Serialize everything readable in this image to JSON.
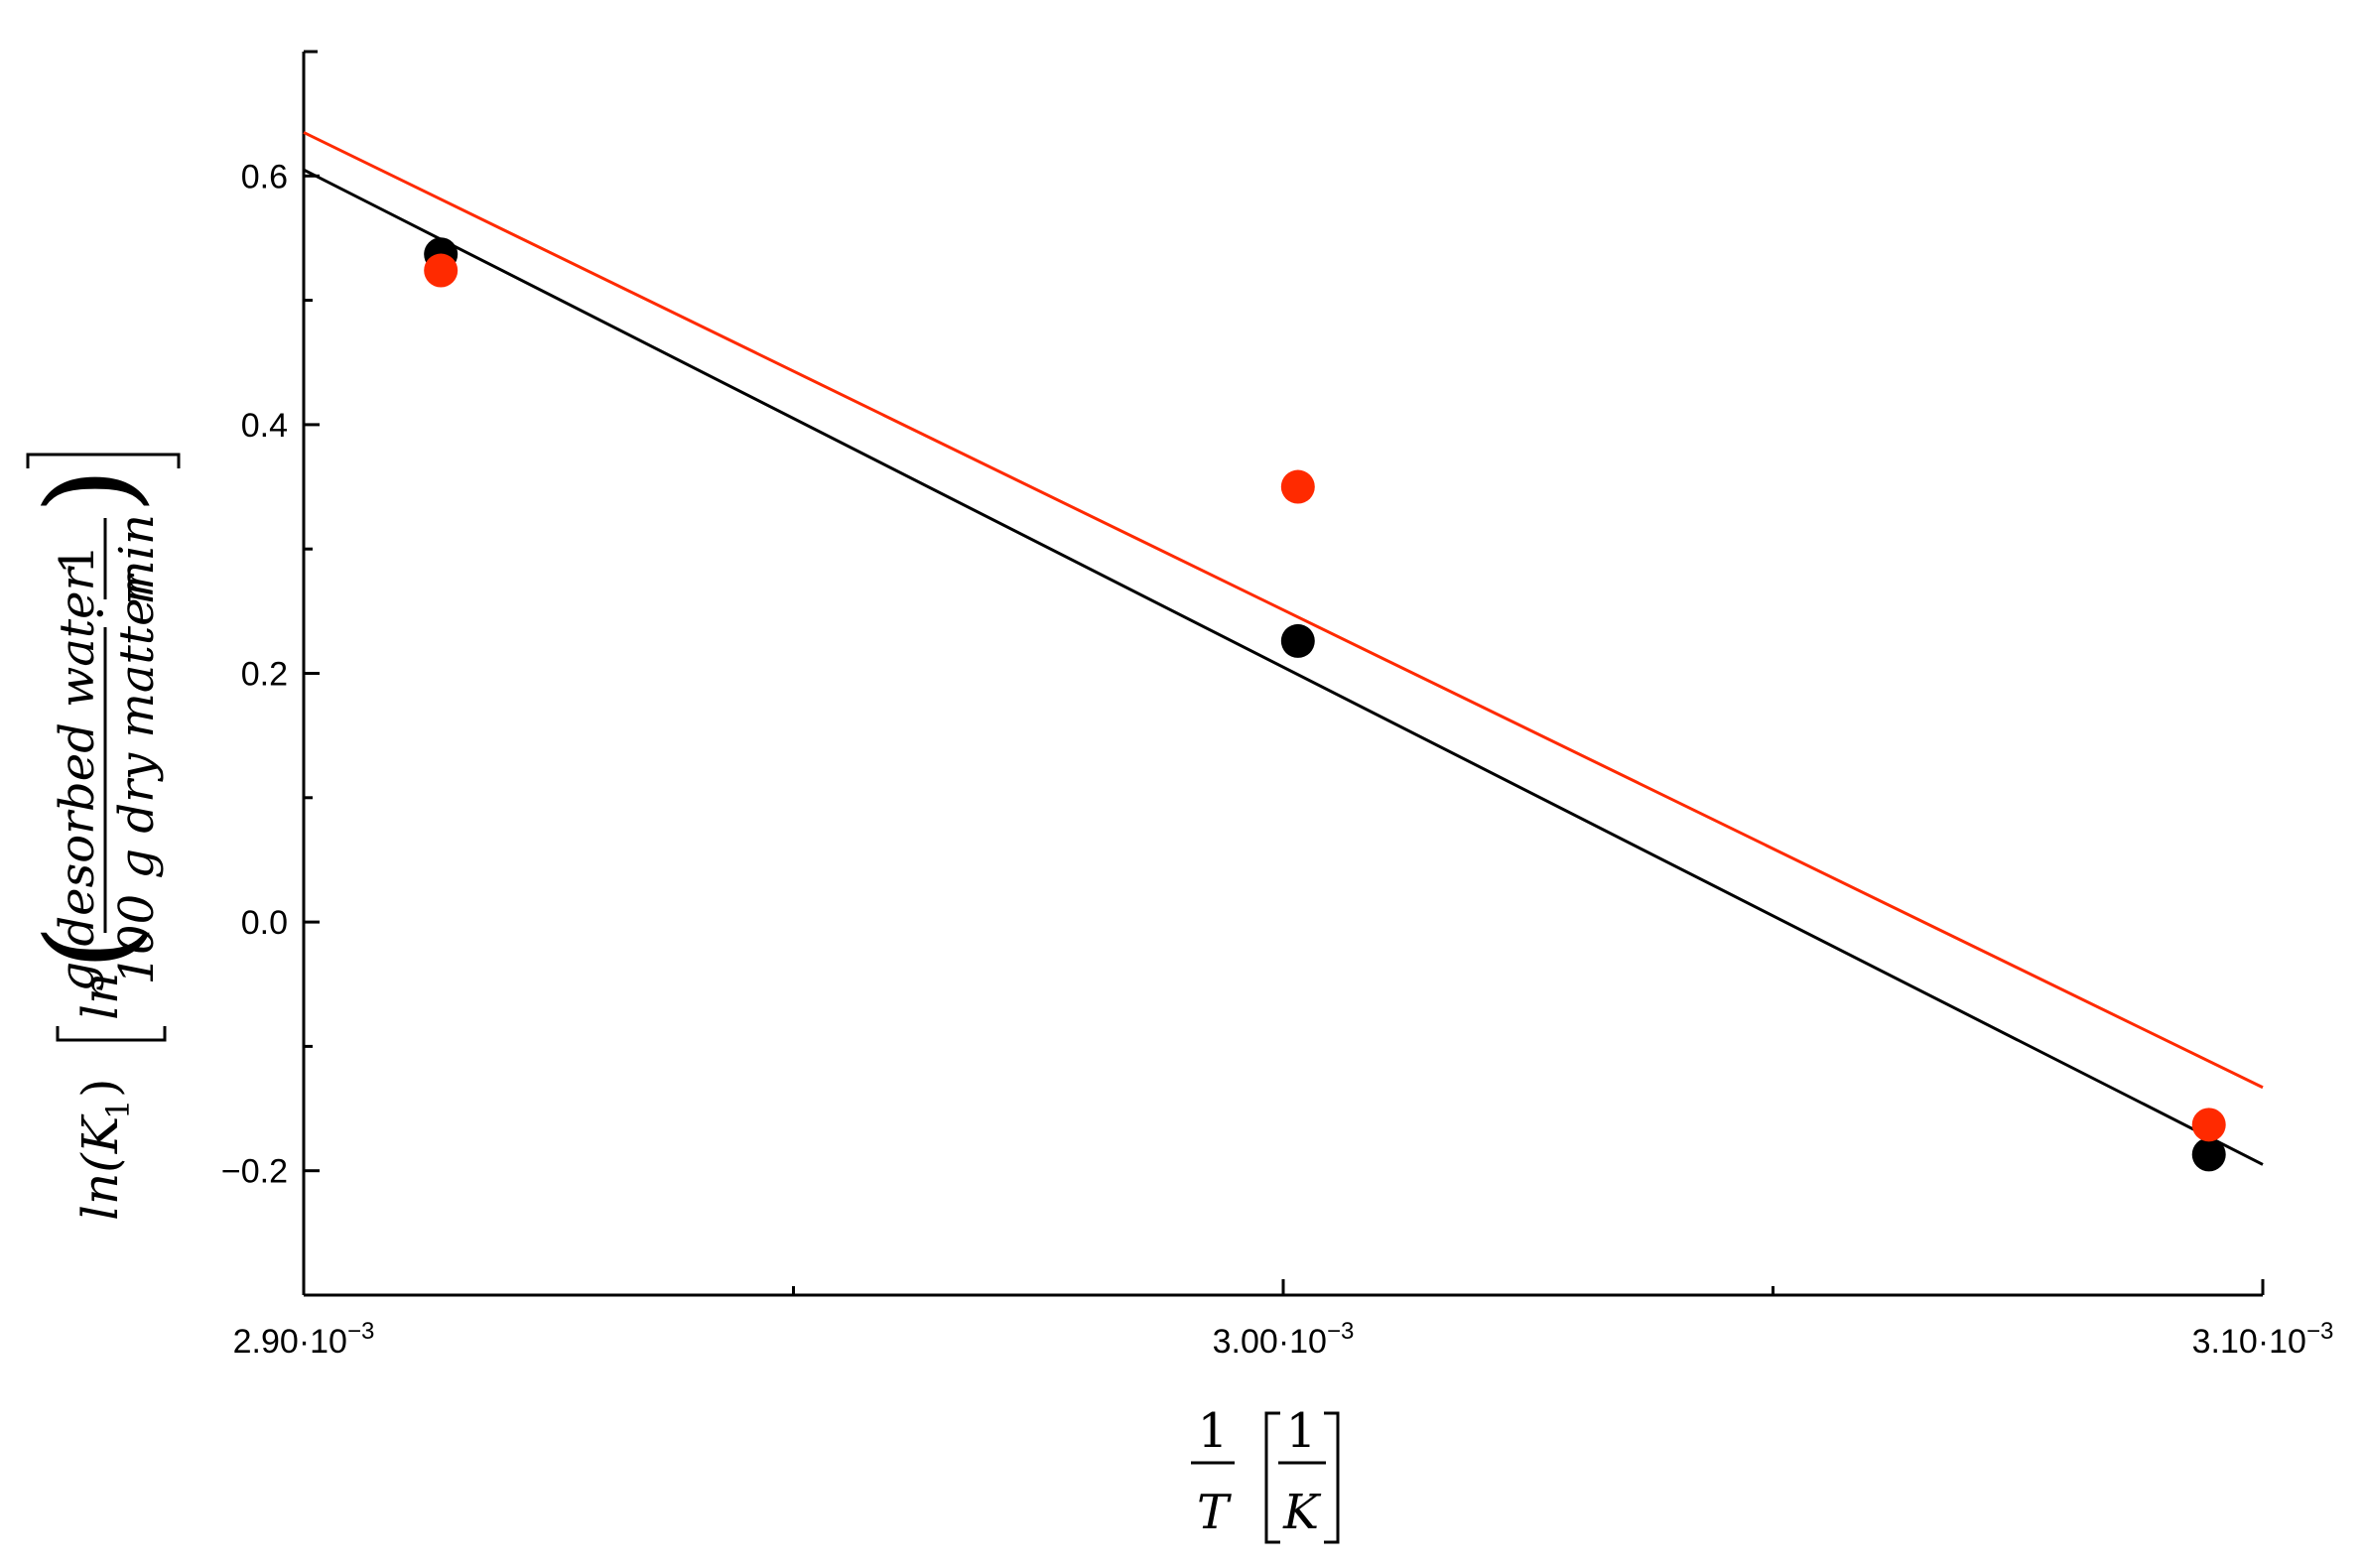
{
  "chart_data": {
    "type": "scatter",
    "xlim": [
      0.0029,
      0.0031
    ],
    "ylim": [
      -0.3,
      0.7
    ],
    "x_ticks": [
      {
        "value": 0.0029,
        "label": "2.90·10",
        "exp": "−3"
      },
      {
        "value": 0.003,
        "label": "3.00·10",
        "exp": "−3"
      },
      {
        "value": 0.0031,
        "label": "3.10·10",
        "exp": "−3"
      }
    ],
    "x_minor_ticks": [
      0.00295,
      0.00305
    ],
    "y_ticks": [
      {
        "value": 0.6,
        "label": "0.6"
      },
      {
        "value": 0.4,
        "label": "0.4"
      },
      {
        "value": 0.2,
        "label": "0.2"
      },
      {
        "value": 0.0,
        "label": "0.0"
      },
      {
        "value": -0.2,
        "label": "−0.2"
      }
    ],
    "y_minor_ticks": [
      0.5,
      0.3,
      0.1,
      -0.1
    ],
    "grid": false,
    "series": [
      {
        "color": "#000000",
        "x": [
          0.002914,
          0.0030015,
          0.0030945
        ],
        "y": [
          0.537,
          0.226,
          -0.187
        ],
        "fit_line": {
          "x": [
            0.0029,
            0.0031
          ],
          "y": [
            0.605,
            -0.195
          ]
        }
      },
      {
        "color": "#ff2a00",
        "x": [
          0.002914,
          0.0030015,
          0.0030945
        ],
        "y": [
          0.524,
          0.35,
          -0.163
        ],
        "fit_line": {
          "x": [
            0.0029,
            0.0031
          ],
          "y": [
            0.635,
            -0.133
          ]
        }
      }
    ],
    "xlabel": {
      "frac_num": "1",
      "frac_den": "T",
      "unit_num": "1",
      "unit_den": "K"
    },
    "ylabel": {
      "prefix": "ln(K",
      "sub": "1",
      "suffix": ")",
      "ln": "ln",
      "frac1_num": "g desorbed water",
      "frac1_den": "100 g dry matter",
      "dot": "·",
      "frac2_num": "1",
      "frac2_den": "min"
    }
  }
}
